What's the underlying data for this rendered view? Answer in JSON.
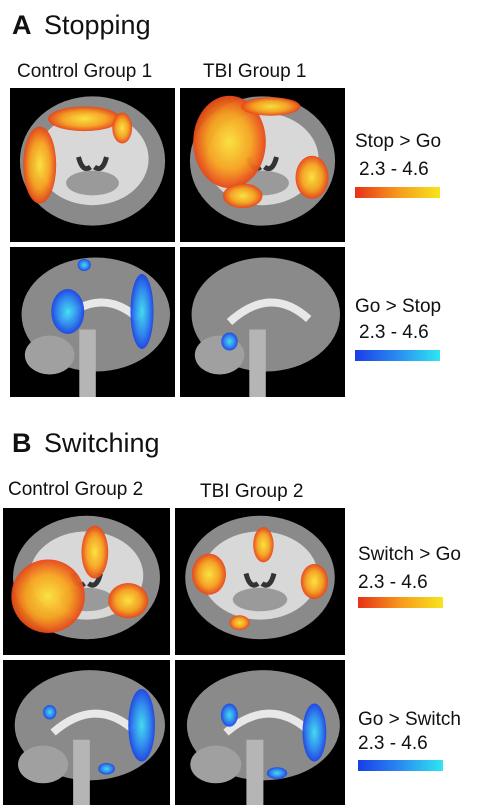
{
  "panels": [
    {
      "letter": "A",
      "title": "Stopping",
      "columns": [
        "Control Group 1",
        "TBI Group 1"
      ],
      "legends": [
        {
          "label": "Stop > Go",
          "range": "2.3 - 4.6"
        },
        {
          "label": "Go > Stop",
          "range": "2.3 - 4.6"
        }
      ]
    },
    {
      "letter": "B",
      "title": "Switching",
      "columns": [
        "Control Group 2",
        "TBI Group 2"
      ],
      "legends": [
        {
          "label": "Switch > Go",
          "range": "2.3 - 4.6"
        },
        {
          "label": "Go > Switch",
          "range": "2.3 - 4.6"
        }
      ]
    }
  ]
}
